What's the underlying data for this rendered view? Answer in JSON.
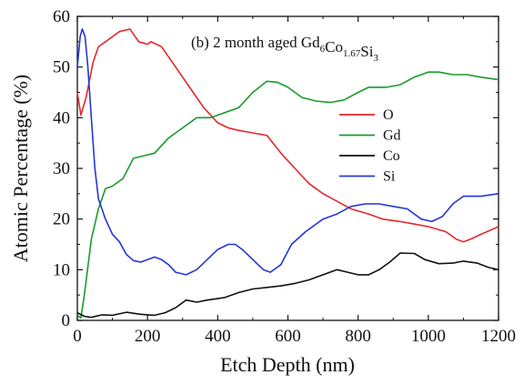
{
  "chart_data": {
    "type": "line",
    "annotation": {
      "prefix": "(b) 2 month aged Gd",
      "parts": [
        {
          "text": "Gd",
          "sub": "6"
        },
        {
          "text": "Co",
          "sub": "1.67"
        },
        {
          "text": "Si",
          "sub": "3"
        }
      ]
    },
    "xlabel": "Etch Depth (nm)",
    "ylabel": "Atomic Percentage (%)",
    "xlim": [
      0,
      1200
    ],
    "ylim": [
      0,
      60
    ],
    "xticks": [
      0,
      200,
      400,
      600,
      800,
      1000,
      1200
    ],
    "yticks": [
      0,
      10,
      20,
      30,
      40,
      50,
      60
    ],
    "grid": false,
    "legend_position": "right-middle",
    "series": [
      {
        "name": "O",
        "color": "#e8262b",
        "points": [
          [
            0,
            45
          ],
          [
            10,
            40.5
          ],
          [
            25,
            44
          ],
          [
            45,
            51
          ],
          [
            60,
            54
          ],
          [
            90,
            55.5
          ],
          [
            120,
            57
          ],
          [
            150,
            57.5
          ],
          [
            175,
            55
          ],
          [
            200,
            54.5
          ],
          [
            210,
            55
          ],
          [
            240,
            54
          ],
          [
            270,
            51
          ],
          [
            300,
            48
          ],
          [
            330,
            45
          ],
          [
            360,
            42
          ],
          [
            400,
            39
          ],
          [
            430,
            38
          ],
          [
            460,
            37.5
          ],
          [
            500,
            37
          ],
          [
            540,
            36.5
          ],
          [
            580,
            33
          ],
          [
            620,
            30
          ],
          [
            660,
            27
          ],
          [
            700,
            25
          ],
          [
            740,
            23.5
          ],
          [
            780,
            22
          ],
          [
            830,
            21
          ],
          [
            870,
            20
          ],
          [
            920,
            19.5
          ],
          [
            960,
            19
          ],
          [
            1000,
            18.5
          ],
          [
            1050,
            17.5
          ],
          [
            1080,
            16
          ],
          [
            1100,
            15.5
          ],
          [
            1120,
            16
          ],
          [
            1150,
            17
          ],
          [
            1200,
            18.5
          ]
        ]
      },
      {
        "name": "Gd",
        "color": "#1a9a2c",
        "points": [
          [
            0,
            1
          ],
          [
            10,
            0.5
          ],
          [
            20,
            5
          ],
          [
            40,
            16
          ],
          [
            60,
            22
          ],
          [
            80,
            26
          ],
          [
            100,
            26.5
          ],
          [
            130,
            28
          ],
          [
            160,
            32
          ],
          [
            190,
            32.5
          ],
          [
            220,
            33
          ],
          [
            260,
            36
          ],
          [
            300,
            38
          ],
          [
            340,
            40
          ],
          [
            380,
            40
          ],
          [
            420,
            41
          ],
          [
            460,
            42
          ],
          [
            500,
            45
          ],
          [
            540,
            47.2
          ],
          [
            570,
            47
          ],
          [
            600,
            46
          ],
          [
            640,
            44
          ],
          [
            680,
            43.3
          ],
          [
            720,
            43
          ],
          [
            760,
            43.5
          ],
          [
            800,
            45
          ],
          [
            830,
            46
          ],
          [
            880,
            46
          ],
          [
            920,
            46.5
          ],
          [
            960,
            48
          ],
          [
            1000,
            49
          ],
          [
            1030,
            49
          ],
          [
            1070,
            48.5
          ],
          [
            1110,
            48.5
          ],
          [
            1150,
            48
          ],
          [
            1200,
            47.5
          ]
        ]
      },
      {
        "name": "Co",
        "color": "#111111",
        "points": [
          [
            0,
            1.5
          ],
          [
            20,
            0.8
          ],
          [
            40,
            0.6
          ],
          [
            70,
            1.1
          ],
          [
            100,
            1
          ],
          [
            140,
            1.6
          ],
          [
            180,
            1.2
          ],
          [
            220,
            1
          ],
          [
            250,
            1.5
          ],
          [
            280,
            2.5
          ],
          [
            310,
            4
          ],
          [
            340,
            3.6
          ],
          [
            370,
            4
          ],
          [
            420,
            4.5
          ],
          [
            460,
            5.5
          ],
          [
            500,
            6.2
          ],
          [
            540,
            6.5
          ],
          [
            580,
            6.8
          ],
          [
            620,
            7.3
          ],
          [
            660,
            8
          ],
          [
            700,
            9
          ],
          [
            740,
            10
          ],
          [
            770,
            9.5
          ],
          [
            800,
            9
          ],
          [
            830,
            9
          ],
          [
            860,
            10
          ],
          [
            890,
            11.5
          ],
          [
            920,
            13.3
          ],
          [
            960,
            13.2
          ],
          [
            990,
            12
          ],
          [
            1030,
            11.2
          ],
          [
            1070,
            11.3
          ],
          [
            1100,
            11.7
          ],
          [
            1140,
            11.3
          ],
          [
            1170,
            10.5
          ],
          [
            1200,
            10
          ]
        ]
      },
      {
        "name": "Si",
        "color": "#2436d6",
        "points": [
          [
            0,
            50
          ],
          [
            8,
            56
          ],
          [
            14,
            57.5
          ],
          [
            22,
            56
          ],
          [
            30,
            50
          ],
          [
            40,
            40
          ],
          [
            50,
            30
          ],
          [
            60,
            24
          ],
          [
            80,
            20
          ],
          [
            100,
            17
          ],
          [
            120,
            15.5
          ],
          [
            140,
            13
          ],
          [
            160,
            11.8
          ],
          [
            180,
            11.5
          ],
          [
            200,
            12
          ],
          [
            220,
            12.5
          ],
          [
            240,
            12
          ],
          [
            260,
            11
          ],
          [
            280,
            9.5
          ],
          [
            310,
            9
          ],
          [
            340,
            10
          ],
          [
            370,
            12
          ],
          [
            400,
            14
          ],
          [
            430,
            15
          ],
          [
            450,
            15
          ],
          [
            470,
            14
          ],
          [
            500,
            12
          ],
          [
            530,
            10
          ],
          [
            550,
            9.5
          ],
          [
            580,
            11
          ],
          [
            610,
            15
          ],
          [
            650,
            17.5
          ],
          [
            700,
            20
          ],
          [
            740,
            21
          ],
          [
            780,
            22.5
          ],
          [
            820,
            23
          ],
          [
            860,
            23
          ],
          [
            900,
            22.5
          ],
          [
            940,
            22
          ],
          [
            980,
            20
          ],
          [
            1010,
            19.5
          ],
          [
            1040,
            20.5
          ],
          [
            1070,
            23
          ],
          [
            1100,
            24.5
          ],
          [
            1150,
            24.5
          ],
          [
            1200,
            25
          ]
        ]
      }
    ]
  }
}
